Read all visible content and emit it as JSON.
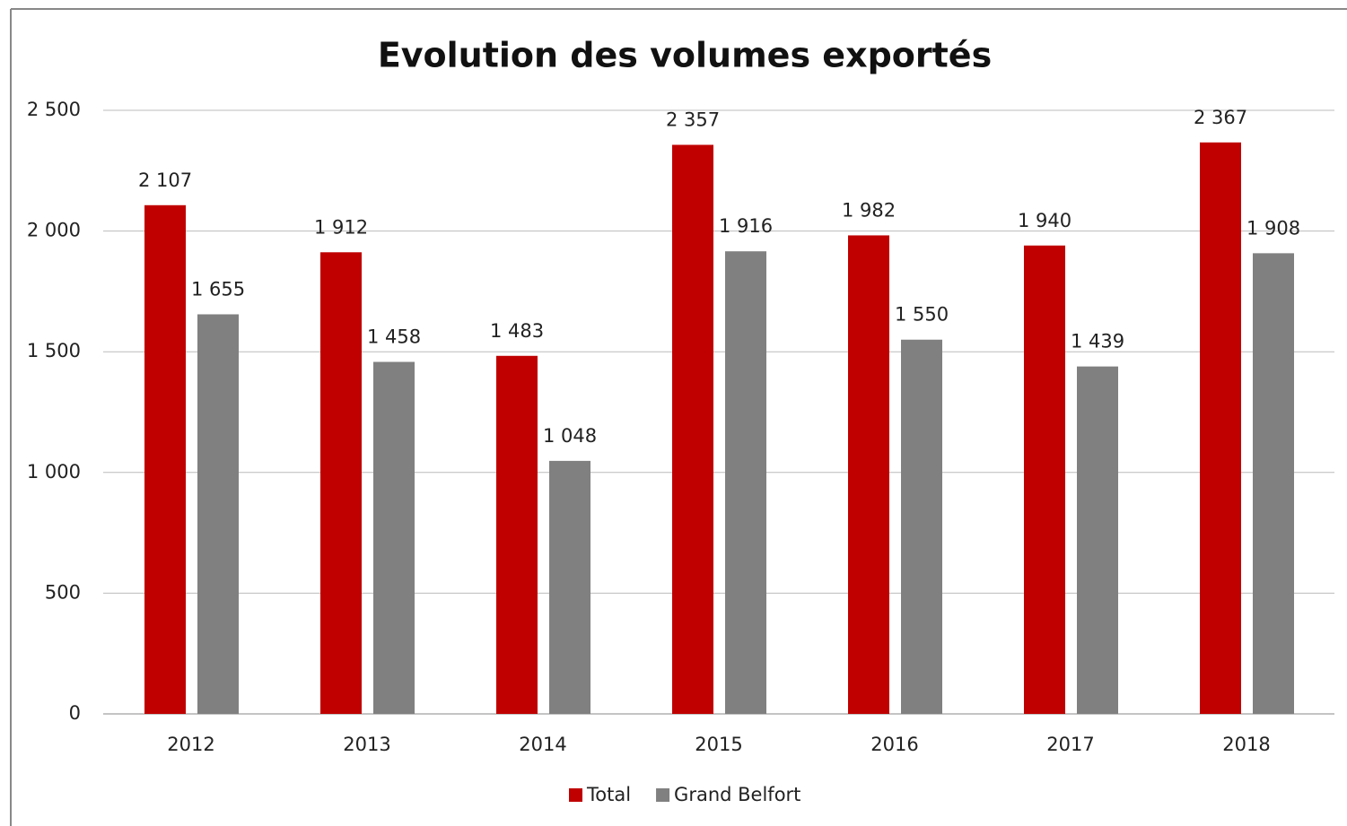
{
  "chart_data": {
    "type": "bar",
    "title": "Evolution des volumes exportés",
    "categories": [
      "2012",
      "2013",
      "2014",
      "2015",
      "2016",
      "2017",
      "2018"
    ],
    "series": [
      {
        "name": "Total",
        "color": "#c00000",
        "values": [
          2107,
          1912,
          1483,
          2357,
          1982,
          1940,
          2367
        ],
        "value_labels": [
          "2 107",
          "1 912",
          "1 483",
          "2 357",
          "1 982",
          "1 940",
          "2 367"
        ]
      },
      {
        "name": "Grand Belfort",
        "color": "#808080",
        "values": [
          1655,
          1458,
          1048,
          1916,
          1550,
          1439,
          1908
        ],
        "value_labels": [
          "1 655",
          "1 458",
          "1 048",
          "1 916",
          "1 550",
          "1 439",
          "1 908"
        ]
      }
    ],
    "ylim": [
      0,
      2500
    ],
    "yticks": [
      0,
      500,
      {
        "value": 1000,
        "label": "1 000"
      },
      {
        "value": 1500,
        "label": "1 500"
      },
      {
        "value": 2000,
        "label": "2 000"
      },
      {
        "value": 2500,
        "label": "2 500"
      }
    ],
    "grid": true,
    "legend": "bottom"
  }
}
